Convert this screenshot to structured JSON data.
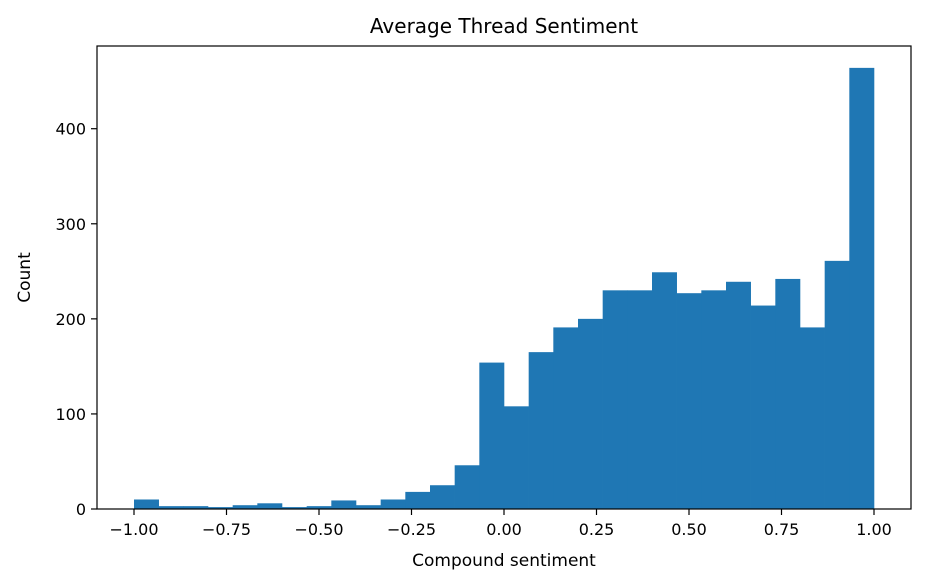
{
  "chart_data": {
    "type": "bar",
    "title": "Average Thread Sentiment",
    "xlabel": "Compound sentiment",
    "ylabel": "Count",
    "bin_edges": [
      -1.0,
      -0.9333,
      -0.8667,
      -0.8,
      -0.7333,
      -0.6667,
      -0.6,
      -0.5333,
      -0.4667,
      -0.4,
      -0.3333,
      -0.2667,
      -0.2,
      -0.1333,
      -0.0667,
      0.0,
      0.0667,
      0.1333,
      0.2,
      0.2667,
      0.3333,
      0.4,
      0.4667,
      0.5333,
      0.6,
      0.6667,
      0.7333,
      0.8,
      0.8667,
      0.9333,
      1.0
    ],
    "values": [
      10,
      3,
      3,
      2,
      4,
      6,
      2,
      3,
      9,
      4,
      10,
      18,
      25,
      46,
      154,
      108,
      165,
      191,
      200,
      230,
      230,
      249,
      227,
      230,
      239,
      214,
      242,
      191,
      261,
      464
    ],
    "xlim": [
      -1.1,
      1.1
    ],
    "ylim": [
      0,
      487
    ],
    "x_ticks": [
      {
        "value": -1.0,
        "label": "−1.00"
      },
      {
        "value": -0.75,
        "label": "−0.75"
      },
      {
        "value": -0.5,
        "label": "−0.50"
      },
      {
        "value": -0.25,
        "label": "−0.25"
      },
      {
        "value": 0.0,
        "label": "0.00"
      },
      {
        "value": 0.25,
        "label": "0.25"
      },
      {
        "value": 0.5,
        "label": "0.50"
      },
      {
        "value": 0.75,
        "label": "0.75"
      },
      {
        "value": 1.0,
        "label": "1.00"
      }
    ],
    "y_ticks": [
      {
        "value": 0,
        "label": "0"
      },
      {
        "value": 100,
        "label": "100"
      },
      {
        "value": 200,
        "label": "200"
      },
      {
        "value": 300,
        "label": "300"
      },
      {
        "value": 400,
        "label": "400"
      }
    ],
    "bar_color": "#1f77b4",
    "grid": false,
    "legend": "none"
  }
}
